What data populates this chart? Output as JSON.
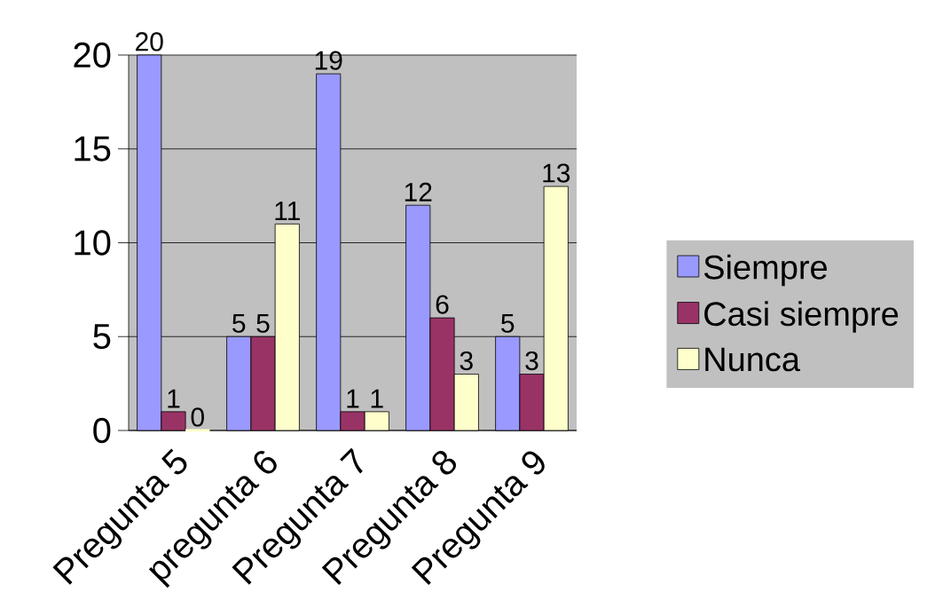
{
  "chart_data": {
    "type": "bar",
    "categories": [
      "Pregunta 5",
      "pregunta 6",
      "Pregunta 7",
      "Pregunta 8",
      "Pregunta 9"
    ],
    "series": [
      {
        "name": "Siempre",
        "color": "#9999ff",
        "values": [
          20,
          5,
          19,
          12,
          5
        ]
      },
      {
        "name": "Casi siempre",
        "color": "#993366",
        "values": [
          1,
          5,
          1,
          6,
          3
        ]
      },
      {
        "name": "Nunca",
        "color": "#ffffcc",
        "values": [
          0,
          11,
          1,
          3,
          13
        ]
      }
    ],
    "ylim": [
      0,
      20
    ],
    "yticks": [
      0,
      5,
      10,
      15,
      20
    ],
    "grid": "y",
    "legend": "right",
    "data_labels": true
  }
}
